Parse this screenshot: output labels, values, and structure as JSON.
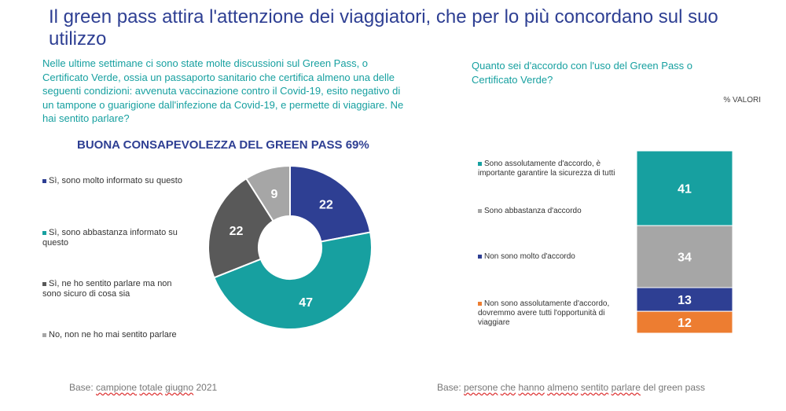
{
  "title": "Il green pass attira l'attenzione dei viaggiatori, che per lo più concordano sul suo utilizzo",
  "left": {
    "question": "Nelle ultime settimane ci sono state molte discussioni sul Green Pass, o Certificato Verde, ossia un passaporto sanitario che certifica almeno una delle seguenti condizioni: avvenuta vaccinazione contro il Covid-19, esito negativo di un tampone o guarigione dall'infezione da Covid-19, e permette di viaggiare. Ne hai sentito parlare?",
    "chart_title": "BUONA CONSAPEVOLEZZA DEL GREEN PASS 69%",
    "base_prefix": "Base: ",
    "base_words": [
      "campione",
      "totale",
      "giugno",
      "2021"
    ]
  },
  "right": {
    "question": "Quanto sei d'accordo con l'uso del Green Pass o Certificato Verde?",
    "unit_label": "% VALORI",
    "base_prefix": "Base: ",
    "base_words": [
      "persone",
      "che",
      "hanno",
      "almeno",
      "sentito",
      "parlare",
      "del green pass"
    ]
  },
  "chart_data": [
    {
      "type": "pie",
      "title": "BUONA CONSAPEVOLEZZA DEL GREEN PASS 69%",
      "categories": [
        "Sì, sono molto informato su questo",
        "Sì, sono abbastanza informato su questo",
        "Sì, ne ho sentito parlare ma non sono sicuro di cosa sia",
        "No, non ne ho mai sentito parlare"
      ],
      "values": [
        22,
        47,
        22,
        9
      ],
      "colors": [
        "#2E3F93",
        "#17A0A0",
        "#595959",
        "#A6A6A6"
      ],
      "donut": true
    },
    {
      "type": "bar",
      "stacked": true,
      "orientation": "vertical",
      "categories": [
        "Sono assolutamente d'accordo, è importante garantire la sicurezza di tutti",
        "Sono abbastanza d'accordo",
        "Non sono molto d'accordo",
        "Non sono assolutamente d'accordo, dovremmo avere tutti l'opportunità di viaggiare"
      ],
      "values": [
        41,
        34,
        13,
        12
      ],
      "colors": [
        "#17A0A0",
        "#A6A6A6",
        "#2E3F93",
        "#ED7D31"
      ]
    }
  ]
}
